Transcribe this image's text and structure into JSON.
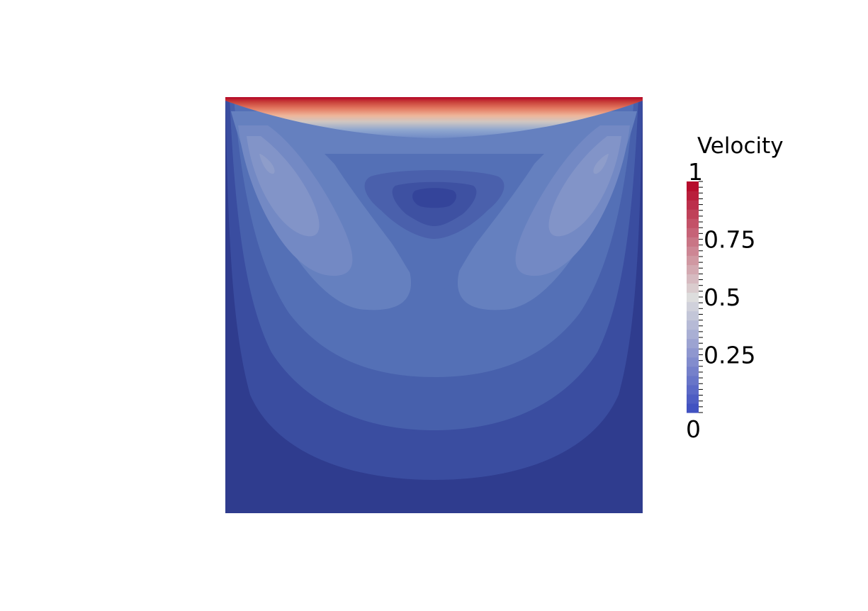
{
  "chart_data": {
    "type": "heatmap",
    "colorbar": {
      "title": "Velocity",
      "range": [
        0,
        1
      ],
      "tick_labels": [
        "1",
        "0.75",
        "0.5",
        "0.25",
        "0"
      ],
      "tick_values": [
        1,
        0.75,
        0.5,
        0.25,
        0
      ],
      "levels": 25,
      "colormap": "cool-to-warm",
      "color_low": "#3b4cc0",
      "color_mid": "#dddddd",
      "color_high": "#b40426"
    }
  }
}
